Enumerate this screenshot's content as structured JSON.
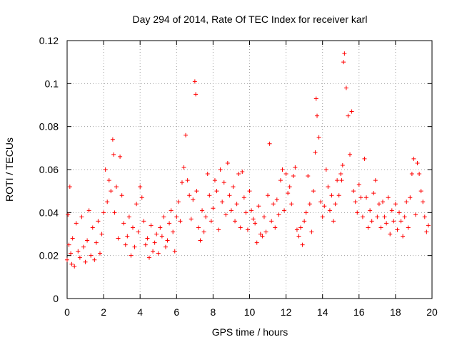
{
  "chart_data": {
    "type": "scatter",
    "title": "Day 294 of 2014, Rate Of TEC Index for receiver karl",
    "xlabel": "GPS time / hours",
    "ylabel": "ROTI / TECUs",
    "xlim": [
      0,
      20
    ],
    "ylim": [
      0,
      0.12
    ],
    "x_ticks": [
      0,
      2,
      4,
      6,
      8,
      10,
      12,
      14,
      16,
      18,
      20
    ],
    "x_tick_labels": [
      "0",
      "2",
      "4",
      "6",
      "8",
      "10",
      "12",
      "14",
      "16",
      "18",
      "20"
    ],
    "y_ticks": [
      0,
      0.02,
      0.04,
      0.06,
      0.08,
      0.1,
      0.12
    ],
    "y_tick_labels": [
      "0",
      "0.02",
      "0.04",
      "0.06",
      "0.08",
      "0.1",
      "0.12"
    ],
    "grid": true,
    "marker": "+",
    "color": "#ff0000",
    "series": [
      {
        "name": "ROTI",
        "x": [
          0.0,
          0.05,
          0.1,
          0.15,
          0.2,
          0.25,
          0.3,
          0.4,
          0.5,
          0.6,
          0.7,
          0.8,
          0.9,
          1.0,
          1.1,
          1.2,
          1.3,
          1.4,
          1.5,
          1.6,
          1.7,
          1.8,
          1.9,
          2.0,
          2.1,
          2.2,
          2.3,
          2.4,
          2.5,
          2.55,
          2.6,
          2.7,
          2.8,
          2.9,
          3.0,
          3.1,
          3.2,
          3.3,
          3.4,
          3.5,
          3.6,
          3.7,
          3.8,
          3.9,
          4.0,
          4.1,
          4.2,
          4.3,
          4.4,
          4.5,
          4.6,
          4.7,
          4.8,
          4.9,
          5.0,
          5.1,
          5.2,
          5.3,
          5.4,
          5.5,
          5.6,
          5.7,
          5.8,
          5.9,
          6.0,
          6.1,
          6.2,
          6.3,
          6.4,
          6.5,
          6.6,
          6.7,
          6.8,
          6.9,
          7.0,
          7.05,
          7.1,
          7.2,
          7.3,
          7.4,
          7.5,
          7.6,
          7.7,
          7.8,
          7.9,
          8.0,
          8.1,
          8.2,
          8.3,
          8.4,
          8.5,
          8.6,
          8.7,
          8.8,
          8.9,
          9.0,
          9.1,
          9.2,
          9.3,
          9.4,
          9.5,
          9.6,
          9.7,
          9.8,
          9.9,
          10.0,
          10.1,
          10.2,
          10.3,
          10.4,
          10.5,
          10.6,
          10.7,
          10.8,
          10.9,
          11.0,
          11.1,
          11.2,
          11.3,
          11.4,
          11.5,
          11.6,
          11.7,
          11.8,
          11.9,
          12.0,
          12.1,
          12.2,
          12.3,
          12.4,
          12.5,
          12.6,
          12.7,
          12.8,
          12.9,
          13.0,
          13.1,
          13.2,
          13.3,
          13.4,
          13.5,
          13.6,
          13.65,
          13.7,
          13.8,
          13.9,
          14.0,
          14.1,
          14.2,
          14.3,
          14.4,
          14.5,
          14.6,
          14.7,
          14.8,
          14.9,
          15.0,
          15.05,
          15.1,
          15.15,
          15.2,
          15.3,
          15.4,
          15.5,
          15.6,
          15.7,
          15.8,
          15.9,
          16.0,
          16.1,
          16.2,
          16.3,
          16.4,
          16.5,
          16.6,
          16.7,
          16.8,
          16.9,
          17.0,
          17.1,
          17.2,
          17.3,
          17.4,
          17.5,
          17.6,
          17.7,
          17.8,
          17.9,
          18.0,
          18.1,
          18.2,
          18.3,
          18.4,
          18.5,
          18.6,
          18.7,
          18.8,
          18.9,
          19.0,
          19.1,
          19.2,
          19.3,
          19.4,
          19.5,
          19.6,
          19.7,
          19.8
        ],
        "y": [
          0.018,
          0.039,
          0.025,
          0.052,
          0.021,
          0.016,
          0.028,
          0.015,
          0.035,
          0.022,
          0.019,
          0.038,
          0.024,
          0.017,
          0.027,
          0.041,
          0.02,
          0.033,
          0.018,
          0.026,
          0.036,
          0.021,
          0.03,
          0.04,
          0.06,
          0.045,
          0.055,
          0.05,
          0.074,
          0.067,
          0.04,
          0.052,
          0.028,
          0.066,
          0.048,
          0.035,
          0.025,
          0.029,
          0.038,
          0.02,
          0.033,
          0.024,
          0.044,
          0.031,
          0.052,
          0.047,
          0.036,
          0.025,
          0.028,
          0.019,
          0.034,
          0.022,
          0.026,
          0.03,
          0.021,
          0.033,
          0.029,
          0.038,
          0.024,
          0.027,
          0.035,
          0.041,
          0.031,
          0.022,
          0.038,
          0.045,
          0.036,
          0.054,
          0.061,
          0.076,
          0.055,
          0.048,
          0.037,
          0.046,
          0.101,
          0.095,
          0.05,
          0.033,
          0.027,
          0.041,
          0.031,
          0.038,
          0.058,
          0.048,
          0.036,
          0.042,
          0.055,
          0.05,
          0.032,
          0.06,
          0.045,
          0.054,
          0.039,
          0.063,
          0.048,
          0.041,
          0.052,
          0.036,
          0.044,
          0.058,
          0.033,
          0.059,
          0.047,
          0.04,
          0.032,
          0.05,
          0.041,
          0.037,
          0.035,
          0.026,
          0.043,
          0.03,
          0.029,
          0.038,
          0.031,
          0.048,
          0.072,
          0.036,
          0.044,
          0.033,
          0.046,
          0.039,
          0.055,
          0.06,
          0.041,
          0.058,
          0.049,
          0.052,
          0.044,
          0.057,
          0.061,
          0.032,
          0.029,
          0.033,
          0.025,
          0.036,
          0.04,
          0.057,
          0.044,
          0.031,
          0.05,
          0.068,
          0.093,
          0.085,
          0.075,
          0.045,
          0.038,
          0.043,
          0.06,
          0.052,
          0.041,
          0.048,
          0.036,
          0.044,
          0.055,
          0.048,
          0.058,
          0.055,
          0.062,
          0.11,
          0.114,
          0.098,
          0.085,
          0.067,
          0.087,
          0.05,
          0.045,
          0.04,
          0.053,
          0.047,
          0.038,
          0.065,
          0.047,
          0.033,
          0.041,
          0.036,
          0.049,
          0.055,
          0.038,
          0.044,
          0.033,
          0.045,
          0.038,
          0.035,
          0.047,
          0.03,
          0.041,
          0.036,
          0.044,
          0.032,
          0.04,
          0.036,
          0.029,
          0.038,
          0.045,
          0.033,
          0.047,
          0.058,
          0.065,
          0.039,
          0.063,
          0.058,
          0.05,
          0.045,
          0.038,
          0.031,
          0.034
        ]
      }
    ]
  }
}
